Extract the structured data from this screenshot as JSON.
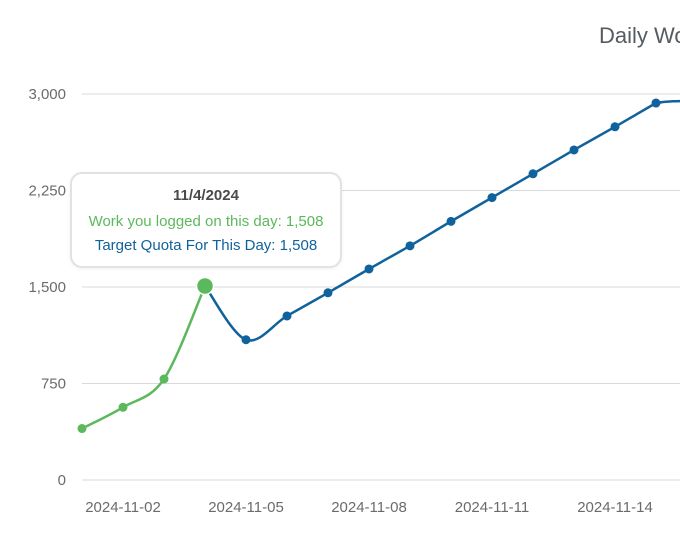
{
  "colors": {
    "logged": "#5cb85c",
    "target": "#10629c",
    "grid": "#d9d9d9",
    "tick": "#6b6b6b"
  },
  "chart_data": {
    "type": "line",
    "title": "Daily Wo",
    "x": [
      "2024-11-01",
      "2024-11-02",
      "2024-11-03",
      "2024-11-04",
      "2024-11-05",
      "2024-11-06",
      "2024-11-07",
      "2024-11-08",
      "2024-11-09",
      "2024-11-10",
      "2024-11-11",
      "2024-11-12",
      "2024-11-13",
      "2024-11-14",
      "2024-11-15"
    ],
    "x_ticks": [
      "2024-11-02",
      "2024-11-05",
      "2024-11-08",
      "2024-11-11",
      "2024-11-14"
    ],
    "y_ticks": [
      0,
      750,
      1500,
      2250,
      3000
    ],
    "y_tick_labels": [
      "0",
      "750",
      "1,500",
      "2,250",
      "3,000"
    ],
    "ylim": [
      0,
      3000
    ],
    "grid": true,
    "series": [
      {
        "name": "Work you logged on this day",
        "color": "#5cb85c",
        "values": [
          400,
          565,
          785,
          1508,
          null,
          null,
          null,
          null,
          null,
          null,
          null,
          null,
          null,
          null,
          null
        ]
      },
      {
        "name": "Target Quota For This Day",
        "color": "#10629c",
        "values": [
          null,
          null,
          null,
          1508,
          1090,
          1275,
          1455,
          1640,
          1820,
          2010,
          2195,
          2380,
          2565,
          2745,
          2930
        ]
      }
    ],
    "tooltip": {
      "date": "11/4/2024",
      "logged_text": "Work you logged on this day: 1,508",
      "target_text": "Target Quota For This Day: 1,508"
    }
  }
}
